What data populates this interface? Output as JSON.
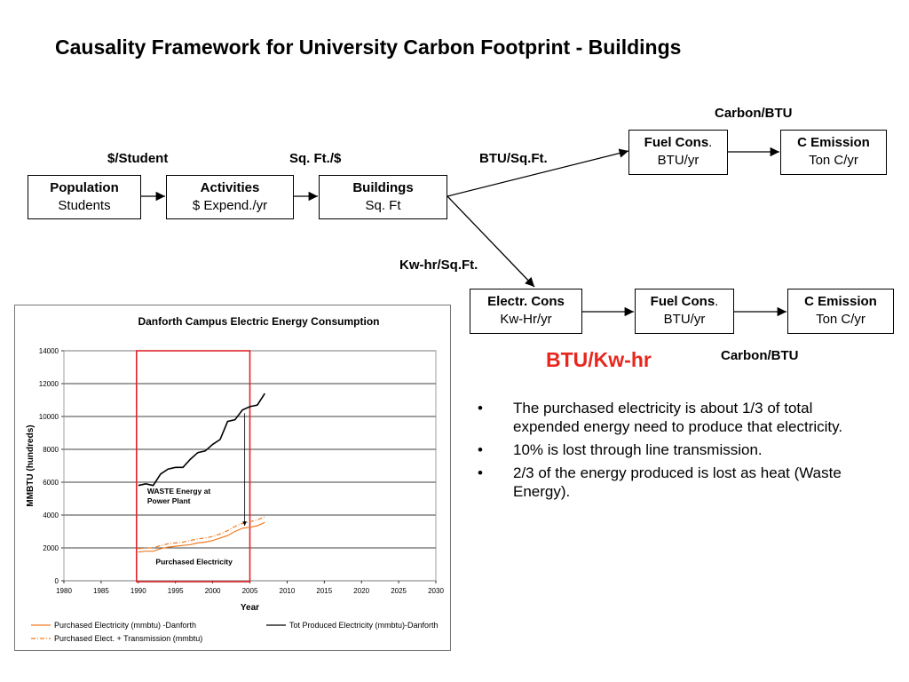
{
  "title": "Causality Framework for University Carbon Footprint - Buildings",
  "boxes": {
    "population": {
      "name": "Population",
      "unit": "Students"
    },
    "activities": {
      "name": "Activities",
      "unit": "$ Expend./yr"
    },
    "buildings": {
      "name": "Buildings",
      "unit": "Sq. Ft"
    },
    "fuel_top": {
      "name": "Fuel Cons",
      "dot": ".",
      "unit": "BTU/yr"
    },
    "emission_top": {
      "name": "C Emission",
      "unit": "Ton C/yr"
    },
    "electr": {
      "name": "Electr. Cons",
      "unit": "Kw-Hr/yr"
    },
    "fuel_bottom": {
      "name": "Fuel Cons",
      "dot": ".",
      "unit": "BTU/yr"
    },
    "emission_bottom": {
      "name": "C Emission",
      "unit": "Ton C/yr"
    }
  },
  "labels": {
    "per_student": "$/Student",
    "sqft_per_dollar": "Sq. Ft./$",
    "btu_sqft": "BTU/Sq.Ft.",
    "carbon_btu_top": "Carbon/BTU",
    "kwhr_sqft": "Kw-hr/Sq.Ft.",
    "carbon_btu_bottom": "Carbon/BTU",
    "btu_kwhr": "BTU/Kw-hr"
  },
  "bullet_char": "•",
  "bullets": [
    "The purchased electricity is about 1/3 of total expended energy need to produce that electricity.",
    "10% is lost through line transmission.",
    "2/3 of the energy produced is lost as heat (Waste Energy)."
  ],
  "colors": {
    "accent_red": "#e8261d",
    "purchased": "#f07b22",
    "highlight_box": "#e0262b",
    "produced": "#000000"
  },
  "chart_data": {
    "type": "line",
    "title": "Danforth Campus Electric Energy Consumption",
    "xlabel": "Year",
    "ylabel": "MMBTU (hundreds)",
    "xlim": [
      1980,
      2030
    ],
    "ylim": [
      0,
      14000
    ],
    "xticks": [
      1980,
      1985,
      1990,
      1995,
      2000,
      2005,
      2010,
      2015,
      2020,
      2025,
      2030
    ],
    "yticks": [
      0,
      2000,
      4000,
      6000,
      8000,
      10000,
      12000,
      14000
    ],
    "grid": "horizontal",
    "legend_position": "bottom",
    "series": [
      {
        "name": "Purchased Electricity (mmbtu) -Danforth",
        "style": "solid",
        "color": "#f07b22",
        "x": [
          1990,
          1991,
          1992,
          1993,
          1994,
          1995,
          1996,
          1997,
          1998,
          1999,
          2000,
          2001,
          2002,
          2003,
          2004,
          2005,
          2006,
          2007
        ],
        "y": [
          1750,
          1800,
          1800,
          1950,
          2050,
          2100,
          2150,
          2200,
          2300,
          2350,
          2450,
          2600,
          2750,
          3000,
          3200,
          3250,
          3350,
          3550
        ]
      },
      {
        "name": "Tot Produced Electricity (mmbtu)-Danforth",
        "style": "solid",
        "color": "#000000",
        "x": [
          1990,
          1991,
          1992,
          1993,
          1994,
          1995,
          1996,
          1997,
          1998,
          1999,
          2000,
          2001,
          2002,
          2003,
          2004,
          2005,
          2006,
          2007
        ],
        "y": [
          5800,
          5900,
          5800,
          6500,
          6800,
          6900,
          6900,
          7400,
          7800,
          7900,
          8300,
          8600,
          9700,
          9800,
          10400,
          10600,
          10700,
          11400
        ]
      },
      {
        "name": "Purchased Elect. + Transmission (mmbtu)",
        "style": "dashdot",
        "color": "#f07b22",
        "x": [
          1990,
          1991,
          1992,
          1993,
          1994,
          1995,
          1996,
          1997,
          1998,
          1999,
          2000,
          2001,
          2002,
          2003,
          2004,
          2005,
          2006,
          2007
        ],
        "y": [
          1950,
          2000,
          2000,
          2150,
          2250,
          2300,
          2350,
          2450,
          2550,
          2600,
          2700,
          2850,
          3050,
          3300,
          3500,
          3600,
          3700,
          3900
        ]
      }
    ],
    "annotations": {
      "waste_energy": "WASTE Energy at Power Plant",
      "purchased_electricity": "Purchased Electricity"
    },
    "highlight_range": [
      1990,
      2005
    ]
  }
}
